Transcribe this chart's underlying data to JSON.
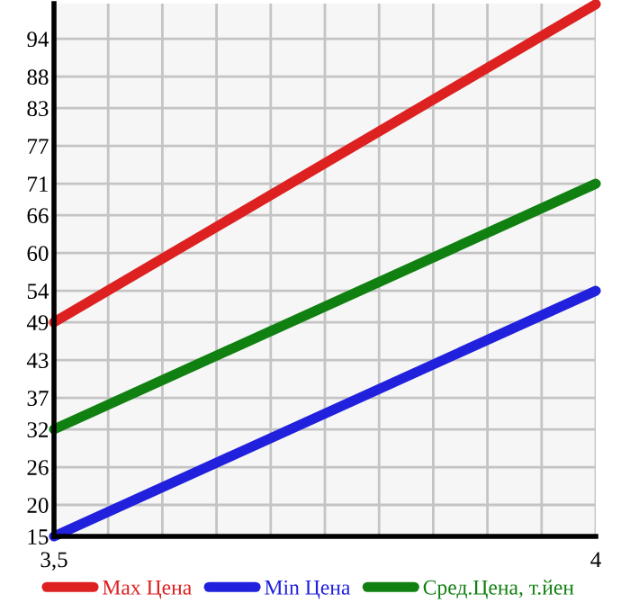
{
  "chart_data": {
    "type": "line",
    "x": [
      3.5,
      4
    ],
    "series": [
      {
        "name": "Max Цена",
        "color": "#dd2020",
        "values": [
          49,
          99.5
        ]
      },
      {
        "name": "Min Цена",
        "color": "#2020dd",
        "values": [
          15,
          54
        ]
      },
      {
        "name": "Сред.Цена, т.йен",
        "color": "#108010",
        "values": [
          32,
          71
        ]
      }
    ],
    "xlim": [
      3.5,
      4
    ],
    "xticks": [
      {
        "value": 3.5,
        "label": "3,5"
      },
      {
        "value": 3.55,
        "label": null
      },
      {
        "value": 3.6,
        "label": null
      },
      {
        "value": 3.65,
        "label": null
      },
      {
        "value": 3.7,
        "label": null
      },
      {
        "value": 3.75,
        "label": null
      },
      {
        "value": 3.8,
        "label": null
      },
      {
        "value": 3.85,
        "label": null
      },
      {
        "value": 3.9,
        "label": null
      },
      {
        "value": 3.95,
        "label": null
      },
      {
        "value": 4,
        "label": "4"
      }
    ],
    "ylim": [
      15,
      99.6
    ],
    "yticks": [
      15,
      20,
      26,
      32,
      37,
      43,
      49,
      54,
      60,
      66,
      71,
      77,
      83,
      88,
      94
    ],
    "grid": true,
    "legend": "bottom",
    "marker": "none",
    "line_style": "solid"
  }
}
